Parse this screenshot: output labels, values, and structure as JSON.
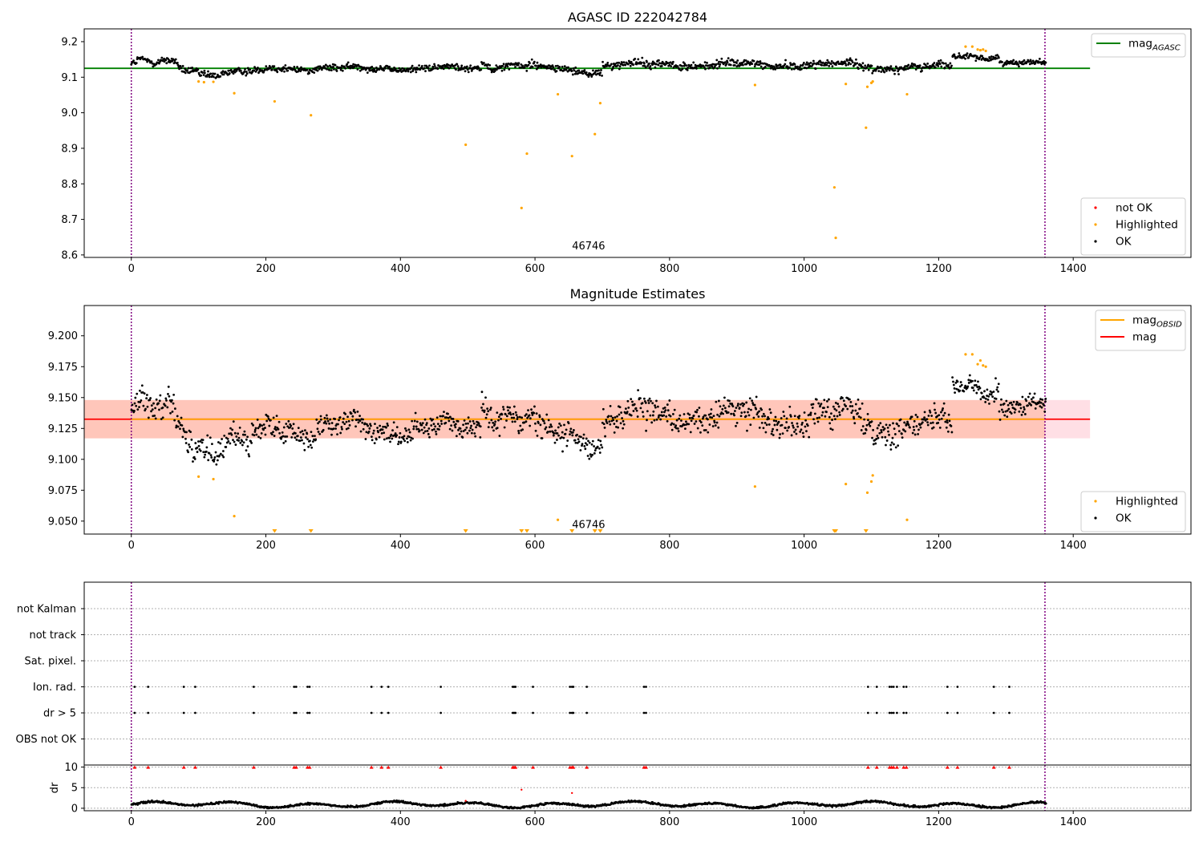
{
  "figure": {
    "colors": {
      "ok": "#000000",
      "not_ok": "#ff0000",
      "highlighted": "#ffa500",
      "mag_agasc_line": "#008000",
      "mag_line": "#ff0000",
      "mag_obsid_line": "#ffa500",
      "band_mag": "#ffc0cb",
      "band_obsid": "#ffa07a",
      "obs_boundary": "#800080",
      "grid": "#b0b0b0"
    }
  },
  "chart_data": [
    {
      "id": "agasc",
      "type": "scatter",
      "title": "AGASC ID 222042784",
      "xlabel": "",
      "ylabel": "",
      "xlim": [
        -70,
        1575
      ],
      "ylim": [
        8.593,
        9.236
      ],
      "xticks": [
        0,
        200,
        400,
        600,
        800,
        1000,
        1200,
        1400
      ],
      "xtick_labels": [
        "0",
        "200",
        "400",
        "600",
        "800",
        "1000",
        "1200",
        "1400"
      ],
      "yticks": [
        8.6,
        8.7,
        8.8,
        8.9,
        9.0,
        9.1,
        9.2
      ],
      "ytick_labels": [
        "8.6",
        "8.7",
        "8.8",
        "8.9",
        "9.0",
        "9.1",
        "9.2"
      ],
      "hlines": [
        {
          "y": 9.125,
          "x0": -70,
          "x1": 1425,
          "color": "#008000"
        }
      ],
      "vlines": [
        0,
        1358
      ],
      "annotations": [
        {
          "x": 655,
          "y": 8.615,
          "text": "46746"
        }
      ],
      "legend_lines": [
        {
          "label": "mag",
          "sub": "AGASC",
          "color": "#008000"
        }
      ],
      "legend_points": [
        {
          "label": "not OK",
          "color": "#ff0000"
        },
        {
          "label": "Highlighted",
          "color": "#ffa500"
        },
        {
          "label": "OK",
          "color": "#000000"
        }
      ],
      "highlighted_points": [
        [
          100,
          9.088
        ],
        [
          108,
          9.086
        ],
        [
          122,
          9.087
        ],
        [
          153,
          9.055
        ],
        [
          213,
          9.032
        ],
        [
          267,
          8.993
        ],
        [
          497,
          8.91
        ],
        [
          580,
          8.732
        ],
        [
          588,
          8.885
        ],
        [
          634,
          9.052
        ],
        [
          655,
          8.878
        ],
        [
          689,
          8.94
        ],
        [
          697,
          9.027
        ],
        [
          927,
          9.078
        ],
        [
          1045,
          8.79
        ],
        [
          1047,
          8.648
        ],
        [
          1062,
          9.081
        ],
        [
          1092,
          8.958
        ],
        [
          1094,
          9.073
        ],
        [
          1100,
          9.084
        ],
        [
          1102,
          9.088
        ],
        [
          1153,
          9.052
        ],
        [
          1240,
          9.186
        ],
        [
          1250,
          9.186
        ],
        [
          1258,
          9.178
        ],
        [
          1262,
          9.176
        ],
        [
          1266,
          9.178
        ],
        [
          1270,
          9.174
        ]
      ],
      "ok_segments": [
        {
          "x0": 0,
          "x1": 100,
          "y0": 9.135,
          "y1": 9.13,
          "wave": 0.015,
          "noise": 0.012
        },
        {
          "x0": 100,
          "x1": 200,
          "y0": 9.11,
          "y1": 9.115,
          "wave": 0.006,
          "noise": 0.011
        },
        {
          "x0": 200,
          "x1": 520,
          "y0": 9.125,
          "y1": 9.125,
          "wave": 0.004,
          "noise": 0.01
        },
        {
          "x0": 520,
          "x1": 600,
          "y0": 9.145,
          "y1": 9.13,
          "wave": 0.012,
          "noise": 0.011
        },
        {
          "x0": 600,
          "x1": 700,
          "y0": 9.125,
          "y1": 9.115,
          "wave": 0.006,
          "noise": 0.011
        },
        {
          "x0": 700,
          "x1": 1100,
          "y0": 9.135,
          "y1": 9.135,
          "wave": 0.005,
          "noise": 0.012
        },
        {
          "x0": 1100,
          "x1": 1220,
          "y0": 9.125,
          "y1": 9.13,
          "wave": 0.005,
          "noise": 0.011
        },
        {
          "x0": 1220,
          "x1": 1290,
          "y0": 9.16,
          "y1": 9.16,
          "wave": 0.006,
          "noise": 0.008
        },
        {
          "x0": 1290,
          "x1": 1360,
          "y0": 9.14,
          "y1": 9.14,
          "wave": 0.003,
          "noise": 0.008
        }
      ]
    },
    {
      "id": "estimates",
      "type": "scatter",
      "title": "Magnitude Estimates",
      "xlabel": "",
      "ylabel": "",
      "xlim": [
        -70,
        1575
      ],
      "ylim": [
        9.0395,
        9.2245
      ],
      "xticks": [
        0,
        200,
        400,
        600,
        800,
        1000,
        1200,
        1400
      ],
      "xtick_labels": [
        "0",
        "200",
        "400",
        "600",
        "800",
        "1000",
        "1200",
        "1400"
      ],
      "yticks": [
        9.05,
        9.075,
        9.1,
        9.125,
        9.15,
        9.175,
        9.2
      ],
      "ytick_labels": [
        "9.050",
        "9.075",
        "9.100",
        "9.125",
        "9.150",
        "9.175",
        "9.200"
      ],
      "bands": [
        {
          "x0": -70,
          "x1": 1425,
          "y0": 9.117,
          "y1": 9.148,
          "color": "#ffc0cb",
          "opacity": 0.5
        },
        {
          "x0": -70,
          "x1": 1358,
          "y0": 9.117,
          "y1": 9.148,
          "color": "#ffa07a",
          "opacity": 0.4
        }
      ],
      "hlines": [
        {
          "y": 9.1325,
          "x0": -70,
          "x1": 1425,
          "color": "#ff0000"
        },
        {
          "y": 9.1325,
          "x0": 0,
          "x1": 1358,
          "color": "#ffa500"
        }
      ],
      "vlines": [
        0,
        1358
      ],
      "annotations": [
        {
          "x": 655,
          "y": 9.0445,
          "text": "46746"
        }
      ],
      "legend_lines": [
        {
          "label": "mag",
          "sub": "OBSID",
          "color": "#ffa500"
        },
        {
          "label": "mag",
          "sub": "",
          "color": "#ff0000"
        }
      ],
      "legend_points": [
        {
          "label": "Highlighted",
          "color": "#ffa500"
        },
        {
          "label": "OK",
          "color": "#000000"
        }
      ],
      "highlighted_points": [
        [
          100,
          9.086
        ],
        [
          122,
          9.084
        ],
        [
          153,
          9.054
        ],
        [
          634,
          9.051
        ],
        [
          927,
          9.078
        ],
        [
          1062,
          9.08
        ],
        [
          1094,
          9.073
        ],
        [
          1100,
          9.082
        ],
        [
          1102,
          9.087
        ],
        [
          1153,
          9.051
        ],
        [
          1240,
          9.185
        ],
        [
          1250,
          9.185
        ],
        [
          1258,
          9.177
        ],
        [
          1262,
          9.18
        ],
        [
          1266,
          9.176
        ],
        [
          1270,
          9.175
        ]
      ],
      "clipped_markers_x": [
        213,
        267,
        497,
        580,
        588,
        655,
        689,
        697,
        1045,
        1047,
        1092
      ],
      "ok_segments": [
        {
          "x0": 0,
          "x1": 90,
          "y0": 9.135,
          "y1": 9.13,
          "wave": 0.015,
          "noise": 0.012
        },
        {
          "x0": 90,
          "x1": 200,
          "y0": 9.11,
          "y1": 9.115,
          "wave": 0.007,
          "noise": 0.011
        },
        {
          "x0": 200,
          "x1": 520,
          "y0": 9.125,
          "y1": 9.125,
          "wave": 0.006,
          "noise": 0.01
        },
        {
          "x0": 520,
          "x1": 600,
          "y0": 9.15,
          "y1": 9.13,
          "wave": 0.012,
          "noise": 0.011
        },
        {
          "x0": 600,
          "x1": 700,
          "y0": 9.122,
          "y1": 9.115,
          "wave": 0.006,
          "noise": 0.011
        },
        {
          "x0": 700,
          "x1": 1100,
          "y0": 9.135,
          "y1": 9.135,
          "wave": 0.006,
          "noise": 0.012
        },
        {
          "x0": 1100,
          "x1": 1220,
          "y0": 9.125,
          "y1": 9.13,
          "wave": 0.006,
          "noise": 0.011
        },
        {
          "x0": 1220,
          "x1": 1290,
          "y0": 9.162,
          "y1": 9.16,
          "wave": 0.006,
          "noise": 0.008
        },
        {
          "x0": 1290,
          "x1": 1360,
          "y0": 9.14,
          "y1": 9.142,
          "wave": 0.003,
          "noise": 0.008
        }
      ]
    },
    {
      "id": "flags",
      "type": "scatter",
      "title": "",
      "xlabel": "",
      "ylabel": "",
      "xlim": [
        -70,
        1575
      ],
      "categories": [
        "not Kalman",
        "not track",
        "Sat. pixel.",
        "Ion. rad.",
        "dr > 5",
        "OBS not OK"
      ],
      "vlines": [
        0,
        1358
      ],
      "flag_rows": {
        "Ion. rad.": [
          5,
          25,
          78,
          95,
          182,
          242,
          245,
          262,
          265,
          357,
          372,
          382,
          460,
          567,
          569,
          571,
          597,
          652,
          655,
          657,
          677,
          762,
          765,
          1095,
          1108,
          1127,
          1130,
          1133,
          1138,
          1148,
          1152,
          1213,
          1228,
          1282,
          1305
        ],
        "dr > 5": [
          5,
          25,
          78,
          95,
          182,
          242,
          245,
          262,
          265,
          357,
          372,
          382,
          460,
          567,
          569,
          571,
          597,
          652,
          655,
          657,
          677,
          762,
          765,
          1095,
          1108,
          1127,
          1130,
          1133,
          1138,
          1148,
          1152,
          1213,
          1228,
          1282,
          1305
        ]
      }
    },
    {
      "id": "dr",
      "type": "scatter",
      "title": "",
      "xlabel": "",
      "ylabel": "dr",
      "xlim": [
        -70,
        1575
      ],
      "ylim": [
        -0.6,
        10.5
      ],
      "yticks": [
        0,
        5,
        10
      ],
      "ytick_labels": [
        "0",
        "5",
        "10"
      ],
      "xticks": [
        0,
        200,
        400,
        600,
        800,
        1000,
        1200,
        1400
      ],
      "xtick_labels": [
        "0",
        "200",
        "400",
        "600",
        "800",
        "1000",
        "1200",
        "1400"
      ],
      "vlines": [
        0,
        1358
      ],
      "clipped_markers_x": [
        5,
        25,
        78,
        95,
        182,
        242,
        245,
        262,
        265,
        357,
        372,
        382,
        460,
        567,
        569,
        571,
        597,
        652,
        655,
        657,
        677,
        762,
        765,
        1095,
        1108,
        1127,
        1130,
        1133,
        1138,
        1148,
        1152,
        1213,
        1228,
        1282,
        1305
      ],
      "outlier_points": [
        [
          580,
          4.5
        ],
        [
          655,
          3.7
        ],
        [
          497,
          1.8
        ]
      ],
      "dr_baseline": {
        "x0": 0,
        "x1": 1360,
        "mean": 0.9,
        "wave": 0.5,
        "noise": 0.25
      }
    }
  ]
}
